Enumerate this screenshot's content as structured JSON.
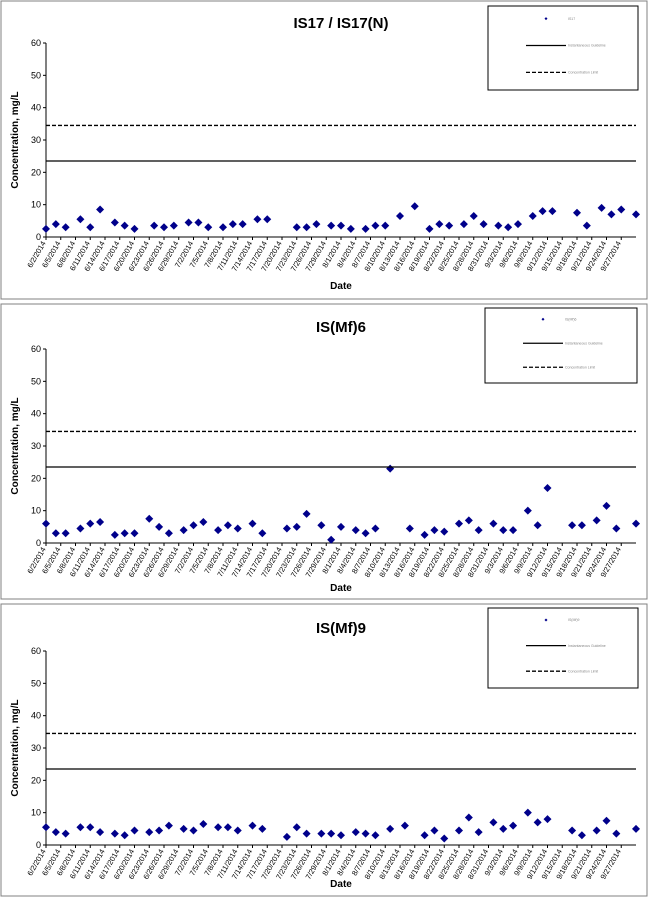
{
  "colors": {
    "marker": "#00008B",
    "line": "#000000",
    "panel_border": "#808080"
  },
  "chart_data": [
    {
      "type": "scatter",
      "title": "IS17 / IS17(N)",
      "xlabel": "Date",
      "ylabel": "Concentration, mg/L",
      "ylim": [
        0,
        60
      ],
      "yticks": [
        "0",
        "10",
        "20",
        "30",
        "40",
        "50",
        "60"
      ],
      "xtick_labels": [
        "6/2/2014",
        "6/5/2014",
        "6/8/2014",
        "6/11/2014",
        "6/14/2014",
        "6/17/2014",
        "6/20/2014",
        "6/23/2014",
        "6/26/2014",
        "6/29/2014",
        "7/2/2014",
        "7/5/2014",
        "7/8/2014",
        "7/11/2014",
        "7/14/2014",
        "7/17/2014",
        "7/20/2014",
        "7/23/2014",
        "7/26/2014",
        "7/29/2014",
        "8/1/2014",
        "8/4/2014",
        "8/7/2014",
        "8/10/2014",
        "8/13/2014",
        "8/16/2014",
        "8/19/2014",
        "8/22/2014",
        "8/25/2014",
        "8/28/2014",
        "8/31/2014",
        "9/3/2014",
        "9/6/2014",
        "9/9/2014",
        "9/12/2014",
        "9/15/2014",
        "9/18/2014",
        "9/21/2014",
        "9/24/2014",
        "9/27/2014"
      ],
      "xrange": [
        "6/2/2014",
        "9/30/2014"
      ],
      "grid": false,
      "legend": {
        "placement": "top-right",
        "entries": [
          "IS17",
          "Instantaneous Guideline",
          "Concentration Limit"
        ]
      },
      "series": [
        {
          "name": "IS17",
          "marker": "diamond",
          "points": [
            [
              "6/2/2014",
              2.5
            ],
            [
              "6/4/2014",
              4
            ],
            [
              "6/6/2014",
              3
            ],
            [
              "6/9/2014",
              5.5
            ],
            [
              "6/11/2014",
              3
            ],
            [
              "6/13/2014",
              8.5
            ],
            [
              "6/16/2014",
              4.5
            ],
            [
              "6/18/2014",
              3.5
            ],
            [
              "6/20/2014",
              2.5
            ],
            [
              "6/24/2014",
              3.5
            ],
            [
              "6/26/2014",
              3
            ],
            [
              "6/28/2014",
              3.5
            ],
            [
              "7/1/2014",
              4.5
            ],
            [
              "7/3/2014",
              4.5
            ],
            [
              "7/5/2014",
              3
            ],
            [
              "7/8/2014",
              3
            ],
            [
              "7/10/2014",
              4
            ],
            [
              "7/12/2014",
              4
            ],
            [
              "7/15/2014",
              5.5
            ],
            [
              "7/17/2014",
              5.5
            ],
            [
              "7/23/2014",
              3
            ],
            [
              "7/25/2014",
              3
            ],
            [
              "7/27/2014",
              4
            ],
            [
              "7/30/2014",
              3.5
            ],
            [
              "8/1/2014",
              3.5
            ],
            [
              "8/3/2014",
              2.5
            ],
            [
              "8/6/2014",
              2.5
            ],
            [
              "8/8/2014",
              3.5
            ],
            [
              "8/10/2014",
              3.5
            ],
            [
              "8/13/2014",
              6.5
            ],
            [
              "8/16/2014",
              9.5
            ],
            [
              "8/19/2014",
              2.5
            ],
            [
              "8/21/2014",
              4
            ],
            [
              "8/23/2014",
              3.5
            ],
            [
              "8/26/2014",
              4
            ],
            [
              "8/28/2014",
              6.5
            ],
            [
              "8/30/2014",
              4
            ],
            [
              "9/2/2014",
              3.5
            ],
            [
              "9/4/2014",
              3
            ],
            [
              "9/6/2014",
              4
            ],
            [
              "9/9/2014",
              6.5
            ],
            [
              "9/11/2014",
              8
            ],
            [
              "9/13/2014",
              8
            ],
            [
              "9/18/2014",
              7.5
            ],
            [
              "9/20/2014",
              3.5
            ],
            [
              "9/23/2014",
              9
            ],
            [
              "9/25/2014",
              7
            ],
            [
              "9/27/2014",
              8.5
            ],
            [
              "9/30/2014",
              7
            ]
          ]
        },
        {
          "name": "Instantaneous Guideline",
          "style": "solid",
          "y": 23.5
        },
        {
          "name": "Concentration Limit",
          "style": "dashed",
          "y": 34.5
        }
      ]
    },
    {
      "type": "scatter",
      "title": "IS(Mf)6",
      "xlabel": "Date",
      "ylabel": "Concentration, mg/L",
      "ylim": [
        0,
        60
      ],
      "yticks": [
        "0",
        "10",
        "20",
        "30",
        "40",
        "50",
        "60"
      ],
      "xtick_labels": [
        "6/2/2014",
        "6/5/2014",
        "6/8/2014",
        "6/11/2014",
        "6/14/2014",
        "6/17/2014",
        "6/20/2014",
        "6/23/2014",
        "6/26/2014",
        "6/29/2014",
        "7/2/2014",
        "7/5/2014",
        "7/8/2014",
        "7/11/2014",
        "7/14/2014",
        "7/17/2014",
        "7/20/2014",
        "7/23/2014",
        "7/26/2014",
        "7/29/2014",
        "8/1/2014",
        "8/4/2014",
        "8/7/2014",
        "8/10/2014",
        "8/13/2014",
        "8/16/2014",
        "8/19/2014",
        "8/22/2014",
        "8/25/2014",
        "8/28/2014",
        "8/31/2014",
        "9/3/2014",
        "9/6/2014",
        "9/9/2014",
        "9/12/2014",
        "9/15/2014",
        "9/18/2014",
        "9/21/2014",
        "9/24/2014",
        "9/27/2014"
      ],
      "xrange": [
        "6/2/2014",
        "9/30/2014"
      ],
      "grid": false,
      "legend": {
        "placement": "top-right",
        "entries": [
          "IS(Mf)6",
          "Instantaneous Guideline",
          "Concentration Limit"
        ]
      },
      "series": [
        {
          "name": "IS(Mf)6",
          "marker": "diamond",
          "points": [
            [
              "6/2/2014",
              6
            ],
            [
              "6/4/2014",
              3
            ],
            [
              "6/6/2014",
              3
            ],
            [
              "6/9/2014",
              4.5
            ],
            [
              "6/11/2014",
              6
            ],
            [
              "6/13/2014",
              6.5
            ],
            [
              "6/16/2014",
              2.5
            ],
            [
              "6/18/2014",
              3
            ],
            [
              "6/20/2014",
              3
            ],
            [
              "6/23/2014",
              7.5
            ],
            [
              "6/25/2014",
              5
            ],
            [
              "6/27/2014",
              3
            ],
            [
              "6/30/2014",
              4
            ],
            [
              "7/2/2014",
              5.5
            ],
            [
              "7/4/2014",
              6.5
            ],
            [
              "7/7/2014",
              4
            ],
            [
              "7/9/2014",
              5.5
            ],
            [
              "7/11/2014",
              4.5
            ],
            [
              "7/14/2014",
              6
            ],
            [
              "7/16/2014",
              3
            ],
            [
              "7/21/2014",
              4.5
            ],
            [
              "7/23/2014",
              5
            ],
            [
              "7/25/2014",
              9
            ],
            [
              "7/28/2014",
              5.5
            ],
            [
              "7/30/2014",
              1
            ],
            [
              "8/1/2014",
              5
            ],
            [
              "8/4/2014",
              4
            ],
            [
              "8/6/2014",
              3
            ],
            [
              "8/8/2014",
              4.5
            ],
            [
              "8/11/2014",
              23
            ],
            [
              "8/15/2014",
              4.5
            ],
            [
              "8/18/2014",
              2.5
            ],
            [
              "8/20/2014",
              4
            ],
            [
              "8/22/2014",
              3.5
            ],
            [
              "8/25/2014",
              6
            ],
            [
              "8/27/2014",
              7
            ],
            [
              "8/29/2014",
              4
            ],
            [
              "9/1/2014",
              6
            ],
            [
              "9/3/2014",
              4
            ],
            [
              "9/5/2014",
              4
            ],
            [
              "9/8/2014",
              10
            ],
            [
              "9/10/2014",
              5.5
            ],
            [
              "9/12/2014",
              17
            ],
            [
              "9/17/2014",
              5.5
            ],
            [
              "9/19/2014",
              5.5
            ],
            [
              "9/22/2014",
              7
            ],
            [
              "9/24/2014",
              11.5
            ],
            [
              "9/26/2014",
              4.5
            ],
            [
              "9/30/2014",
              6
            ]
          ]
        },
        {
          "name": "Instantaneous Guideline",
          "style": "solid",
          "y": 23.5
        },
        {
          "name": "Concentration Limit",
          "style": "dashed",
          "y": 34.5
        }
      ]
    },
    {
      "type": "scatter",
      "title": "IS(Mf)9",
      "xlabel": "Date",
      "ylabel": "Concentration, mg/L",
      "ylim": [
        0,
        60
      ],
      "yticks": [
        "0",
        "10",
        "20",
        "30",
        "40",
        "50",
        "60"
      ],
      "xtick_labels": [
        "6/2/2014",
        "6/5/2014",
        "6/8/2014",
        "6/11/2014",
        "6/14/2014",
        "6/17/2014",
        "6/20/2014",
        "6/23/2014",
        "6/26/2014",
        "6/29/2014",
        "7/2/2014",
        "7/5/2014",
        "7/8/2014",
        "7/11/2014",
        "7/14/2014",
        "7/17/2014",
        "7/20/2014",
        "7/23/2014",
        "7/26/2014",
        "7/29/2014",
        "8/1/2014",
        "8/4/2014",
        "8/7/2014",
        "8/10/2014",
        "8/13/2014",
        "8/16/2014",
        "8/19/2014",
        "8/22/2014",
        "8/25/2014",
        "8/28/2014",
        "8/31/2014",
        "9/3/2014",
        "9/6/2014",
        "9/9/2014",
        "9/12/2014",
        "9/15/2014",
        "9/18/2014",
        "9/21/2014",
        "9/24/2014",
        "9/27/2014"
      ],
      "xrange": [
        "6/2/2014",
        "9/30/2014"
      ],
      "grid": false,
      "legend": {
        "placement": "top-right",
        "entries": [
          "IS(Mf)9",
          "Instantaneous Guideline",
          "Concentration Limit"
        ]
      },
      "series": [
        {
          "name": "IS(Mf)9",
          "marker": "diamond",
          "points": [
            [
              "6/2/2014",
              5.5
            ],
            [
              "6/4/2014",
              4
            ],
            [
              "6/6/2014",
              3.5
            ],
            [
              "6/9/2014",
              5.5
            ],
            [
              "6/11/2014",
              5.5
            ],
            [
              "6/13/2014",
              4
            ],
            [
              "6/16/2014",
              3.5
            ],
            [
              "6/18/2014",
              3
            ],
            [
              "6/20/2014",
              4.5
            ],
            [
              "6/23/2014",
              4
            ],
            [
              "6/25/2014",
              4.5
            ],
            [
              "6/27/2014",
              6
            ],
            [
              "6/30/2014",
              5
            ],
            [
              "7/2/2014",
              4.5
            ],
            [
              "7/4/2014",
              6.5
            ],
            [
              "7/7/2014",
              5.5
            ],
            [
              "7/9/2014",
              5.5
            ],
            [
              "7/11/2014",
              4.5
            ],
            [
              "7/14/2014",
              6
            ],
            [
              "7/16/2014",
              5
            ],
            [
              "7/21/2014",
              2.5
            ],
            [
              "7/23/2014",
              5.5
            ],
            [
              "7/25/2014",
              3.5
            ],
            [
              "7/28/2014",
              3.5
            ],
            [
              "7/30/2014",
              3.5
            ],
            [
              "8/1/2014",
              3
            ],
            [
              "8/4/2014",
              4
            ],
            [
              "8/6/2014",
              3.5
            ],
            [
              "8/8/2014",
              3
            ],
            [
              "8/11/2014",
              5
            ],
            [
              "8/14/2014",
              6
            ],
            [
              "8/18/2014",
              3
            ],
            [
              "8/20/2014",
              4.5
            ],
            [
              "8/22/2014",
              2
            ],
            [
              "8/25/2014",
              4.5
            ],
            [
              "8/27/2014",
              8.5
            ],
            [
              "8/29/2014",
              4
            ],
            [
              "9/1/2014",
              7
            ],
            [
              "9/3/2014",
              5
            ],
            [
              "9/5/2014",
              6
            ],
            [
              "9/8/2014",
              10
            ],
            [
              "9/10/2014",
              7
            ],
            [
              "9/12/2014",
              8
            ],
            [
              "9/17/2014",
              4.5
            ],
            [
              "9/19/2014",
              3
            ],
            [
              "9/22/2014",
              4.5
            ],
            [
              "9/24/2014",
              7.5
            ],
            [
              "9/26/2014",
              3.5
            ],
            [
              "9/30/2014",
              5
            ]
          ]
        },
        {
          "name": "Instantaneous Guideline",
          "style": "solid",
          "y": 23.5
        },
        {
          "name": "Concentration Limit",
          "style": "dashed",
          "y": 34.5
        }
      ]
    }
  ]
}
